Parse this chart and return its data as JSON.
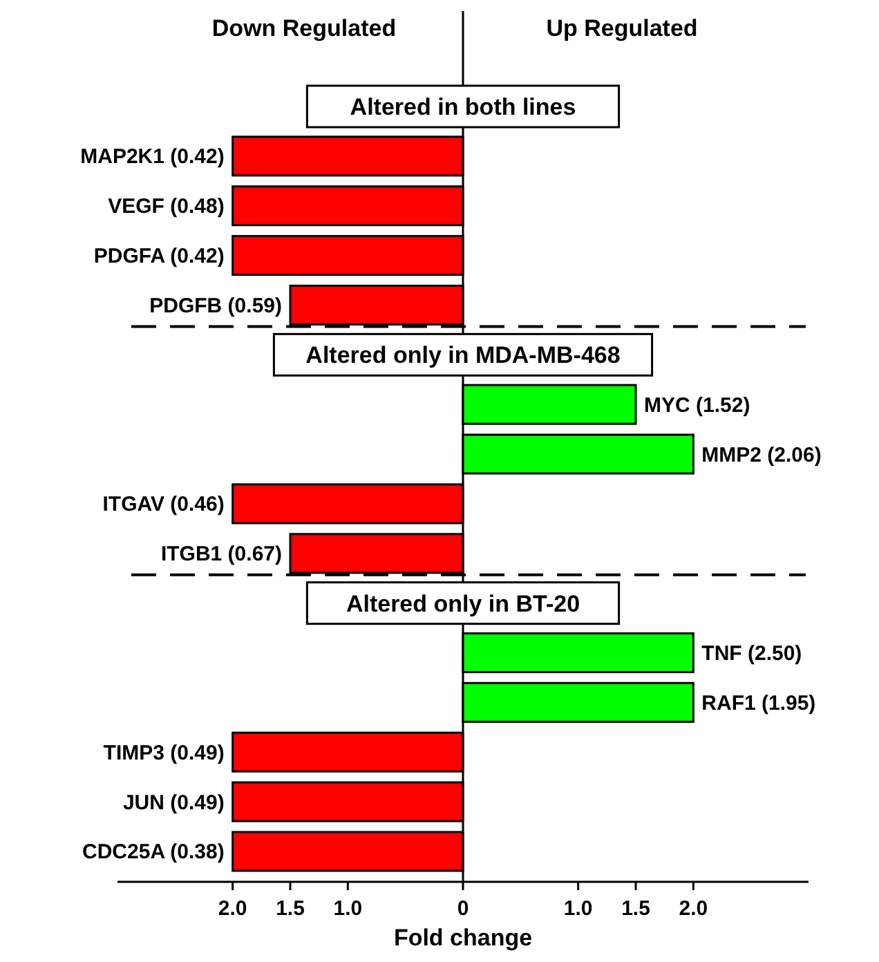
{
  "chart_data": {
    "type": "bar",
    "orientation": "horizontal",
    "xlabel": "Fold change",
    "categories": [
      null,
      "MAP2K1 (0.42)",
      "VEGF (0.48)",
      "PDGFA (0.42)",
      "PDGFB (0.59)",
      null,
      "MYC (1.52)",
      "MMP2 (2.06)",
      "ITGAV (0.46)",
      "ITGB1 (0.67)",
      null,
      "TNF (2.50)",
      "RAF1 (1.95)",
      "TIMP3 (0.49)",
      "JUN (0.49)",
      "CDC25A (0.38)"
    ],
    "series": [
      {
        "values": [
          null,
          -2,
          -2,
          -2,
          -1.5,
          null,
          1.5,
          2,
          -2,
          -1.5,
          null,
          2,
          2,
          -2,
          -2,
          -2
        ],
        "colors": [
          null,
          "#ff0000",
          "#ff0000",
          "#ff0000",
          "#ff0000",
          null,
          "#00ff00",
          "#00ff00",
          "#ff0000",
          "#ff0000",
          null,
          "#00ff00",
          "#00ff00",
          "#ff0000",
          "#ff0000",
          "#ff0000"
        ]
      }
    ],
    "xlim": [
      -3,
      3
    ],
    "xticks": [
      {
        "value": -2,
        "label": "2.0"
      },
      {
        "value": -1.5,
        "label": "1.5"
      },
      {
        "value": -1,
        "label": "1.0"
      },
      0,
      {
        "value": 1,
        "label": "1.0"
      },
      {
        "value": 1.5,
        "label": "1.5"
      },
      {
        "value": 2,
        "label": "2.0"
      }
    ],
    "ref_lines": [
      {
        "axis": "x",
        "value": 0
      }
    ],
    "annotations": [
      "Down Regulated",
      "Up Regulated",
      "Altered in both lines",
      "Altered only in MDA-MB-468",
      "Altered only in BT-20"
    ]
  }
}
